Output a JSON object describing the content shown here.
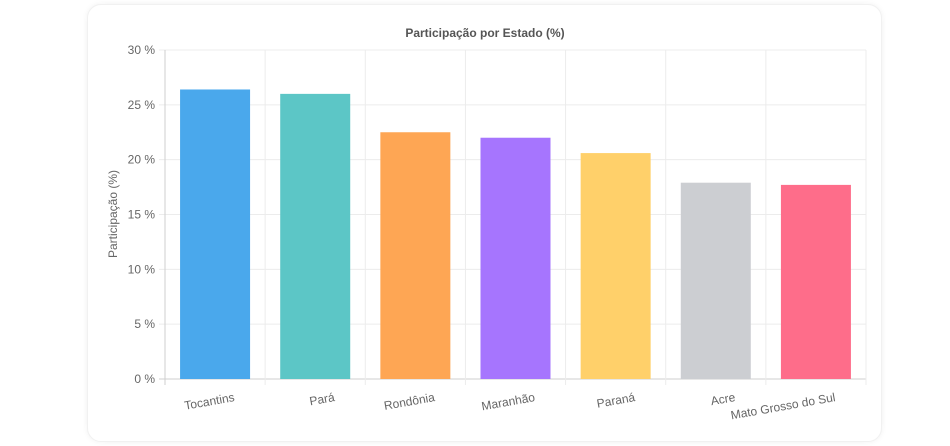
{
  "chart_data": {
    "type": "bar",
    "title": "Participação por Estado (%)",
    "ylabel": "Participação (%)",
    "xlabel": "",
    "categories": [
      "Tocantins",
      "Pará",
      "Rondônia",
      "Maranhão",
      "Paraná",
      "Acre",
      "Mato Grosso do Sul"
    ],
    "values": [
      26.4,
      26.0,
      22.5,
      22.0,
      20.6,
      17.9,
      17.7
    ],
    "colors": [
      "#4aa8ec",
      "#5cc6c6",
      "#fea654",
      "#a675fe",
      "#ffd06a",
      "#ccced2",
      "#fe6d8a"
    ],
    "ylim": [
      0,
      30
    ],
    "yticks": [
      "0 %",
      "5 %",
      "10 %",
      "15 %",
      "20 %",
      "25 %",
      "30 %"
    ],
    "ytick_values": [
      0,
      5,
      10,
      15,
      20,
      25,
      30
    ],
    "grid": true,
    "legend": "none"
  }
}
